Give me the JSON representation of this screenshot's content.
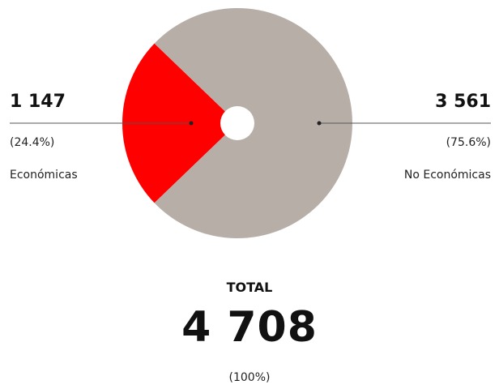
{
  "chart_data": {
    "type": "pie",
    "slices": [
      {
        "value_label": "1 147",
        "value": 1147,
        "percent_label": "(24.4%)",
        "percent": 24.4,
        "label": "Económicas",
        "color": "#ff0000"
      },
      {
        "value_label": "3 561",
        "value": 3561,
        "percent_label": "(75.6%)",
        "percent": 75.6,
        "label": "No Económicas",
        "color": "#b8aea8"
      }
    ],
    "total": {
      "label": "TOTAL",
      "value_label": "4 708",
      "value": 4708,
      "percent_label": "(100%)"
    }
  }
}
